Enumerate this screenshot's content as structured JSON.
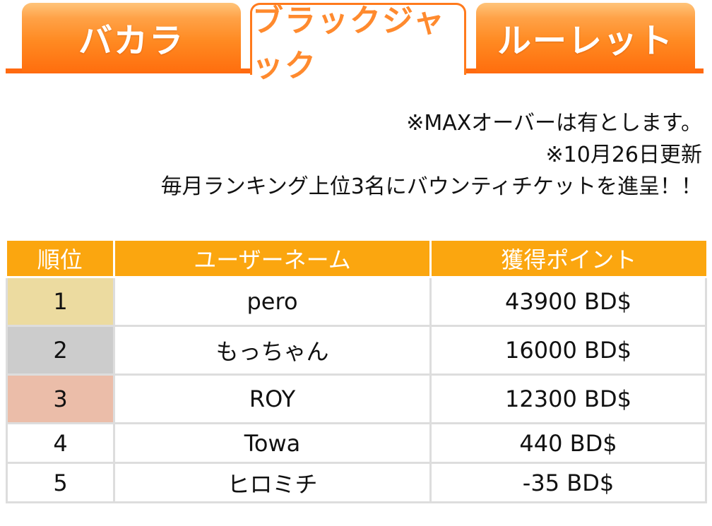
{
  "tabs": [
    {
      "label": "バカラ",
      "active": false
    },
    {
      "label": "ブラックジャック",
      "active": true
    },
    {
      "label": "ルーレット",
      "active": false
    }
  ],
  "notes": {
    "max_over": "※MAXオーバーは有とします。",
    "updated": "※10月26日更新",
    "reward": "毎月ランキング上位3名にバウンティチケットを進呈！！"
  },
  "table": {
    "headers": {
      "rank": "順位",
      "username": "ユーザーネーム",
      "points": "獲得ポイント"
    },
    "rows": [
      {
        "rank": "1",
        "username": "pero",
        "points": "43900 BD$"
      },
      {
        "rank": "2",
        "username": "もっちゃん",
        "points": "16000 BD$"
      },
      {
        "rank": "3",
        "username": "ROY",
        "points": "12300 BD$"
      },
      {
        "rank": "4",
        "username": "Towa",
        "points": "440 BD$"
      },
      {
        "rank": "5",
        "username": "ヒロミチ",
        "points": "-35 BD$"
      }
    ]
  },
  "colors": {
    "tab_orange": "#ff7a1c",
    "header_orange": "#fba60f",
    "gold": "#ecdba0",
    "silver": "#cccccc",
    "bronze": "#ebbda9"
  }
}
